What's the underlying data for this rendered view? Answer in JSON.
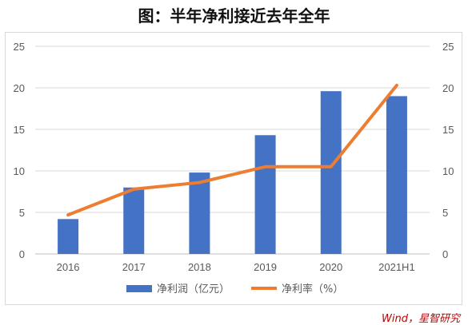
{
  "title": "图：半年净利接近去年全年",
  "source": "Wind，星智研究",
  "chart_data": {
    "type": "bar",
    "categories": [
      "2016",
      "2017",
      "2018",
      "2019",
      "2020",
      "2021H1"
    ],
    "series": [
      {
        "name": "净利润（亿元）",
        "type": "bar",
        "axis": "left",
        "color": "#4472C4",
        "values": [
          4.2,
          8.0,
          9.8,
          14.3,
          19.6,
          19.0
        ]
      },
      {
        "name": "净利率（%）",
        "type": "line",
        "axis": "right",
        "color": "#ED7D31",
        "values": [
          4.7,
          7.8,
          8.6,
          10.5,
          10.5,
          20.3
        ]
      }
    ],
    "yticks": [
      "0",
      "5",
      "10",
      "15",
      "20",
      "25"
    ],
    "ylim": [
      0,
      25
    ],
    "y2ticks": [
      "0",
      "5",
      "10",
      "15",
      "20",
      "25"
    ],
    "y2lim": [
      0,
      25
    ],
    "grid": true,
    "legend_position": "bottom"
  }
}
